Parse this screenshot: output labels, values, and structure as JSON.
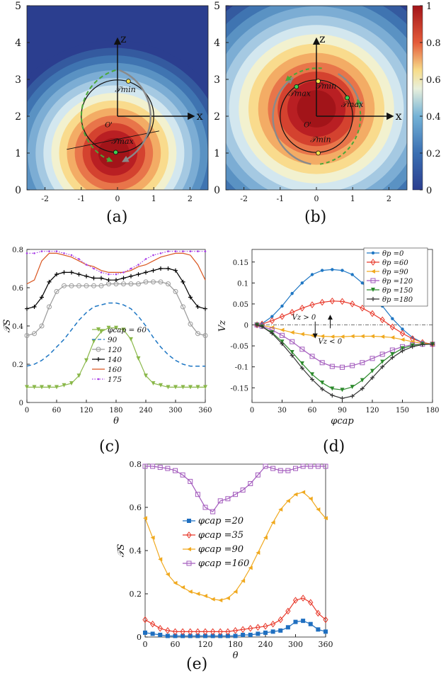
{
  "figure_colors": {
    "bg": "#ffffff",
    "axis": "#222222",
    "grey_arrow": "#8a8a8a",
    "green_arrow": "#4aa838"
  },
  "chart_data": [
    {
      "id": "a",
      "type": "heatmap",
      "caption": "(a)",
      "xlim": [
        -2.5,
        2.5
      ],
      "ylim": [
        0,
        5
      ],
      "xticks": [
        "-2",
        "-1",
        "0",
        "1",
        "2"
      ],
      "yticks": [
        "0",
        "1",
        "2",
        "3",
        "4",
        "5"
      ],
      "hot_center": [
        -0.1,
        1.0
      ],
      "hot_scale": 1.25,
      "circle": {
        "center": [
          0,
          2
        ],
        "radius": 1
      },
      "axis_labels": {
        "z": "z",
        "x": "x",
        "origin": "O'"
      },
      "annotations": [
        {
          "text": "T_min",
          "display": "𝒯min",
          "at": [
            0.2,
            2.65
          ]
        },
        {
          "text": "T_max",
          "display": "𝒯max",
          "at": [
            0.1,
            1.25
          ]
        }
      ],
      "points": [
        {
          "at": [
            0.3,
            2.95
          ],
          "color": "#f3e04a"
        },
        {
          "at": [
            -0.05,
            1.02
          ],
          "color": "#3fcf52"
        }
      ]
    },
    {
      "id": "b",
      "type": "heatmap",
      "caption": "(b)",
      "xlim": [
        -2.5,
        2.5
      ],
      "ylim": [
        0,
        5
      ],
      "xticks": [
        "-2",
        "-1",
        "0",
        "1",
        "2"
      ],
      "yticks": [
        "0",
        "1",
        "2",
        "3",
        "4",
        "5"
      ],
      "hot_center": [
        0,
        2.2
      ],
      "hot_scale": 1.55,
      "circle": {
        "center": [
          0,
          2
        ],
        "radius": 1
      },
      "axis_labels": {
        "z": "z",
        "x": "x",
        "origin": "O'"
      },
      "annotations": [
        {
          "text": "T_min",
          "display": "𝒯min",
          "at": [
            0.25,
            2.75
          ]
        },
        {
          "text": "T_max",
          "display": "𝒯max",
          "at": [
            -0.5,
            2.55
          ]
        },
        {
          "text": "T_max",
          "display": "𝒯max",
          "at": [
            0.95,
            2.25
          ]
        },
        {
          "text": "T_min",
          "display": "𝒯min",
          "at": [
            0.1,
            1.3
          ]
        }
      ],
      "points": [
        {
          "at": [
            0.05,
            2.95
          ],
          "color": "#f3e04a"
        },
        {
          "at": [
            -0.55,
            2.8
          ],
          "color": "#3fcf52"
        },
        {
          "at": [
            0.85,
            2.5
          ],
          "color": "#3fcf52"
        },
        {
          "at": [
            0.05,
            1.0
          ],
          "color": "#f3e04a"
        }
      ],
      "colorbar": {
        "range": [
          0,
          1
        ],
        "ticks": [
          "0",
          "0.2",
          "0.4",
          "0.6",
          "0.8",
          "1"
        ]
      }
    },
    {
      "id": "c",
      "type": "line",
      "caption": "(c)",
      "xlabel": "θ",
      "ylabel": "𝒯S",
      "xlim": [
        0,
        360
      ],
      "ylim": [
        0,
        0.8
      ],
      "xticks": [
        "0",
        "60",
        "120",
        "180",
        "240",
        "300",
        "360"
      ],
      "yticks": [
        "0",
        "0.2",
        "0.4",
        "0.6",
        "0.8"
      ],
      "x": [
        0,
        15,
        30,
        45,
        60,
        75,
        90,
        105,
        120,
        135,
        150,
        165,
        180,
        195,
        210,
        225,
        240,
        255,
        270,
        285,
        300,
        315,
        330,
        345,
        360
      ],
      "series": [
        {
          "name": "φcap = 60",
          "color": "#8ab84a",
          "marker": "tri-down",
          "values": [
            0.08,
            0.08,
            0.08,
            0.08,
            0.08,
            0.09,
            0.1,
            0.14,
            0.22,
            0.32,
            0.37,
            0.39,
            0.39,
            0.38,
            0.33,
            0.23,
            0.14,
            0.1,
            0.09,
            0.08,
            0.08,
            0.08,
            0.08,
            0.08,
            0.08
          ]
        },
        {
          "name": "90",
          "color": "#1f77c4",
          "marker": "dash",
          "values": [
            0.19,
            0.2,
            0.22,
            0.25,
            0.29,
            0.33,
            0.38,
            0.43,
            0.47,
            0.5,
            0.51,
            0.52,
            0.52,
            0.51,
            0.49,
            0.45,
            0.4,
            0.34,
            0.29,
            0.25,
            0.22,
            0.2,
            0.19,
            0.19,
            0.19
          ]
        },
        {
          "name": "120",
          "color": "#9a9a9a",
          "marker": "circle",
          "values": [
            0.35,
            0.36,
            0.4,
            0.5,
            0.58,
            0.61,
            0.61,
            0.61,
            0.61,
            0.61,
            0.61,
            0.62,
            0.62,
            0.62,
            0.62,
            0.62,
            0.63,
            0.63,
            0.63,
            0.62,
            0.58,
            0.5,
            0.41,
            0.36,
            0.35
          ]
        },
        {
          "name": "140",
          "color": "#000000",
          "marker": "plus",
          "values": [
            0.49,
            0.5,
            0.55,
            0.63,
            0.67,
            0.68,
            0.68,
            0.67,
            0.66,
            0.65,
            0.65,
            0.64,
            0.64,
            0.65,
            0.66,
            0.67,
            0.68,
            0.69,
            0.7,
            0.7,
            0.69,
            0.63,
            0.55,
            0.5,
            0.49
          ]
        },
        {
          "name": "160",
          "color": "#d9541e",
          "marker": "none",
          "values": [
            0.62,
            0.64,
            0.74,
            0.78,
            0.78,
            0.77,
            0.76,
            0.74,
            0.72,
            0.71,
            0.69,
            0.68,
            0.68,
            0.68,
            0.69,
            0.71,
            0.72,
            0.74,
            0.76,
            0.77,
            0.78,
            0.78,
            0.77,
            0.72,
            0.64
          ]
        },
        {
          "name": "175",
          "color": "#a73ee6",
          "marker": "dots",
          "values": [
            0.78,
            0.78,
            0.79,
            0.79,
            0.79,
            0.78,
            0.77,
            0.75,
            0.72,
            0.7,
            0.68,
            0.67,
            0.67,
            0.68,
            0.7,
            0.72,
            0.75,
            0.77,
            0.78,
            0.79,
            0.79,
            0.79,
            0.79,
            0.79,
            0.79
          ]
        }
      ]
    },
    {
      "id": "d",
      "type": "line",
      "caption": "(d)",
      "xlabel": "φcap",
      "ylabel": "Vz",
      "xlim": [
        0,
        180
      ],
      "ylim": [
        -0.185,
        0.18
      ],
      "xticks": [
        "0",
        "30",
        "60",
        "90",
        "120",
        "150",
        "180"
      ],
      "yticks": [
        "-0.15",
        "-0.1",
        "-0.05",
        "0",
        "0.05",
        "0.1",
        "0.15"
      ],
      "x": [
        5,
        10,
        20,
        30,
        40,
        50,
        60,
        70,
        80,
        90,
        100,
        110,
        120,
        130,
        140,
        150,
        160,
        170,
        180
      ],
      "series": [
        {
          "name": "θp =0",
          "color": "#1f77c4",
          "marker": "circle-filled",
          "values": [
            0.0,
            0.003,
            0.02,
            0.045,
            0.075,
            0.1,
            0.12,
            0.13,
            0.132,
            0.13,
            0.12,
            0.1,
            0.075,
            0.045,
            0.015,
            -0.01,
            -0.03,
            -0.042,
            -0.046
          ]
        },
        {
          "name": "θp =60",
          "color": "#e8392b",
          "marker": "diamond",
          "values": [
            0.0,
            0.002,
            0.01,
            0.02,
            0.03,
            0.04,
            0.048,
            0.054,
            0.057,
            0.056,
            0.05,
            0.04,
            0.027,
            0.012,
            -0.005,
            -0.02,
            -0.033,
            -0.042,
            -0.046
          ]
        },
        {
          "name": "θp =90",
          "color": "#f0a91f",
          "marker": "tri-left",
          "values": [
            0.0,
            -0.001,
            -0.006,
            -0.012,
            -0.018,
            -0.022,
            -0.025,
            -0.027,
            -0.028,
            -0.028,
            -0.027,
            -0.027,
            -0.027,
            -0.028,
            -0.03,
            -0.035,
            -0.04,
            -0.044,
            -0.046
          ]
        },
        {
          "name": "θp =120",
          "color": "#a35bbd",
          "marker": "square",
          "values": [
            0.0,
            -0.003,
            -0.012,
            -0.025,
            -0.04,
            -0.058,
            -0.075,
            -0.09,
            -0.099,
            -0.101,
            -0.097,
            -0.09,
            -0.08,
            -0.07,
            -0.06,
            -0.052,
            -0.047,
            -0.046,
            -0.046
          ]
        },
        {
          "name": "θp =150",
          "color": "#2c8a2c",
          "marker": "tri-down",
          "values": [
            0.0,
            -0.004,
            -0.018,
            -0.04,
            -0.065,
            -0.092,
            -0.118,
            -0.138,
            -0.152,
            -0.155,
            -0.148,
            -0.132,
            -0.11,
            -0.088,
            -0.07,
            -0.056,
            -0.049,
            -0.046,
            -0.046
          ]
        },
        {
          "name": "θp =180",
          "color": "#333333",
          "marker": "plus",
          "values": [
            0.0,
            -0.004,
            -0.02,
            -0.045,
            -0.073,
            -0.103,
            -0.13,
            -0.153,
            -0.168,
            -0.175,
            -0.17,
            -0.152,
            -0.126,
            -0.1,
            -0.078,
            -0.062,
            -0.052,
            -0.047,
            -0.046
          ]
        }
      ],
      "annotations": [
        {
          "text": "Vz > 0"
        },
        {
          "text": "Vz < 0"
        }
      ]
    },
    {
      "id": "e",
      "type": "line",
      "caption": "(e)",
      "xlabel": "θ",
      "ylabel": "𝒯S",
      "xlim": [
        0,
        360
      ],
      "ylim": [
        0,
        0.8
      ],
      "xticks": [
        "0",
        "60",
        "120",
        "180",
        "240",
        "300",
        "360"
      ],
      "yticks": [
        "0",
        "0.2",
        "0.4",
        "0.6",
        "0.8"
      ],
      "x": [
        0,
        15,
        30,
        45,
        60,
        75,
        90,
        105,
        120,
        135,
        150,
        165,
        180,
        195,
        210,
        225,
        240,
        255,
        270,
        285,
        300,
        315,
        330,
        345,
        360
      ],
      "series": [
        {
          "name": "φcap =20",
          "color": "#1f6fc0",
          "marker": "square-filled",
          "values": [
            0.02,
            0.015,
            0.01,
            0.005,
            0.005,
            0.005,
            0.005,
            0.005,
            0.005,
            0.005,
            0.005,
            0.005,
            0.005,
            0.01,
            0.01,
            0.015,
            0.02,
            0.025,
            0.03,
            0.045,
            0.07,
            0.075,
            0.06,
            0.035,
            0.025
          ]
        },
        {
          "name": "φcap =35",
          "color": "#e8392b",
          "marker": "diamond",
          "values": [
            0.08,
            0.06,
            0.04,
            0.03,
            0.025,
            0.025,
            0.025,
            0.025,
            0.025,
            0.025,
            0.025,
            0.025,
            0.03,
            0.035,
            0.04,
            0.045,
            0.05,
            0.06,
            0.08,
            0.12,
            0.17,
            0.18,
            0.16,
            0.11,
            0.08
          ]
        },
        {
          "name": "φcap =90",
          "color": "#f0a91f",
          "marker": "tri-left",
          "values": [
            0.55,
            0.46,
            0.36,
            0.29,
            0.25,
            0.23,
            0.21,
            0.2,
            0.19,
            0.175,
            0.17,
            0.18,
            0.21,
            0.26,
            0.32,
            0.39,
            0.46,
            0.53,
            0.59,
            0.63,
            0.66,
            0.67,
            0.64,
            0.59,
            0.55
          ]
        },
        {
          "name": "φcap =160",
          "color": "#a35bbd",
          "marker": "square",
          "values": [
            0.79,
            0.79,
            0.785,
            0.78,
            0.77,
            0.75,
            0.72,
            0.66,
            0.6,
            0.58,
            0.63,
            0.64,
            0.66,
            0.68,
            0.71,
            0.75,
            0.79,
            0.78,
            0.77,
            0.77,
            0.78,
            0.79,
            0.79,
            0.79,
            0.79
          ]
        }
      ]
    }
  ]
}
